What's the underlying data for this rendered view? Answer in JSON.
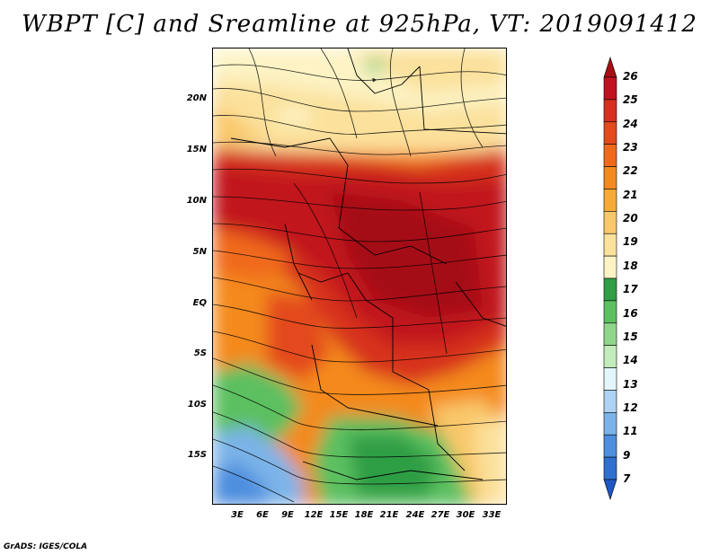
{
  "title": "WBPT [C] and Sreamline at 925hPa, VT: 2019091412",
  "footer": "GrADS: IGES/COLA",
  "lat_ticks": [
    "20N",
    "15N",
    "10N",
    "5N",
    "EQ",
    "5S",
    "10S",
    "15S"
  ],
  "lon_ticks": [
    "3E",
    "6E",
    "9E",
    "12E",
    "15E",
    "18E",
    "21E",
    "24E",
    "27E",
    "30E",
    "33E"
  ],
  "colorbar": {
    "labels": [
      "26",
      "25",
      "24",
      "23",
      "22",
      "21",
      "20",
      "19",
      "18",
      "17",
      "16",
      "15",
      "14",
      "13",
      "12",
      "11",
      "9",
      "7"
    ],
    "colors": [
      "#a50f15",
      "#c1121f",
      "#d7301f",
      "#e34a1c",
      "#f06a1a",
      "#f48a1e",
      "#f7ab34",
      "#f9c86a",
      "#fbe19c",
      "#fdf3c4",
      "#2f9e44",
      "#5cc060",
      "#8fd68a",
      "#c2edba",
      "#e2f6fb",
      "#aed3f2",
      "#7bb4e8",
      "#4d8ede",
      "#2f6fd2",
      "#1e56c4"
    ]
  }
}
